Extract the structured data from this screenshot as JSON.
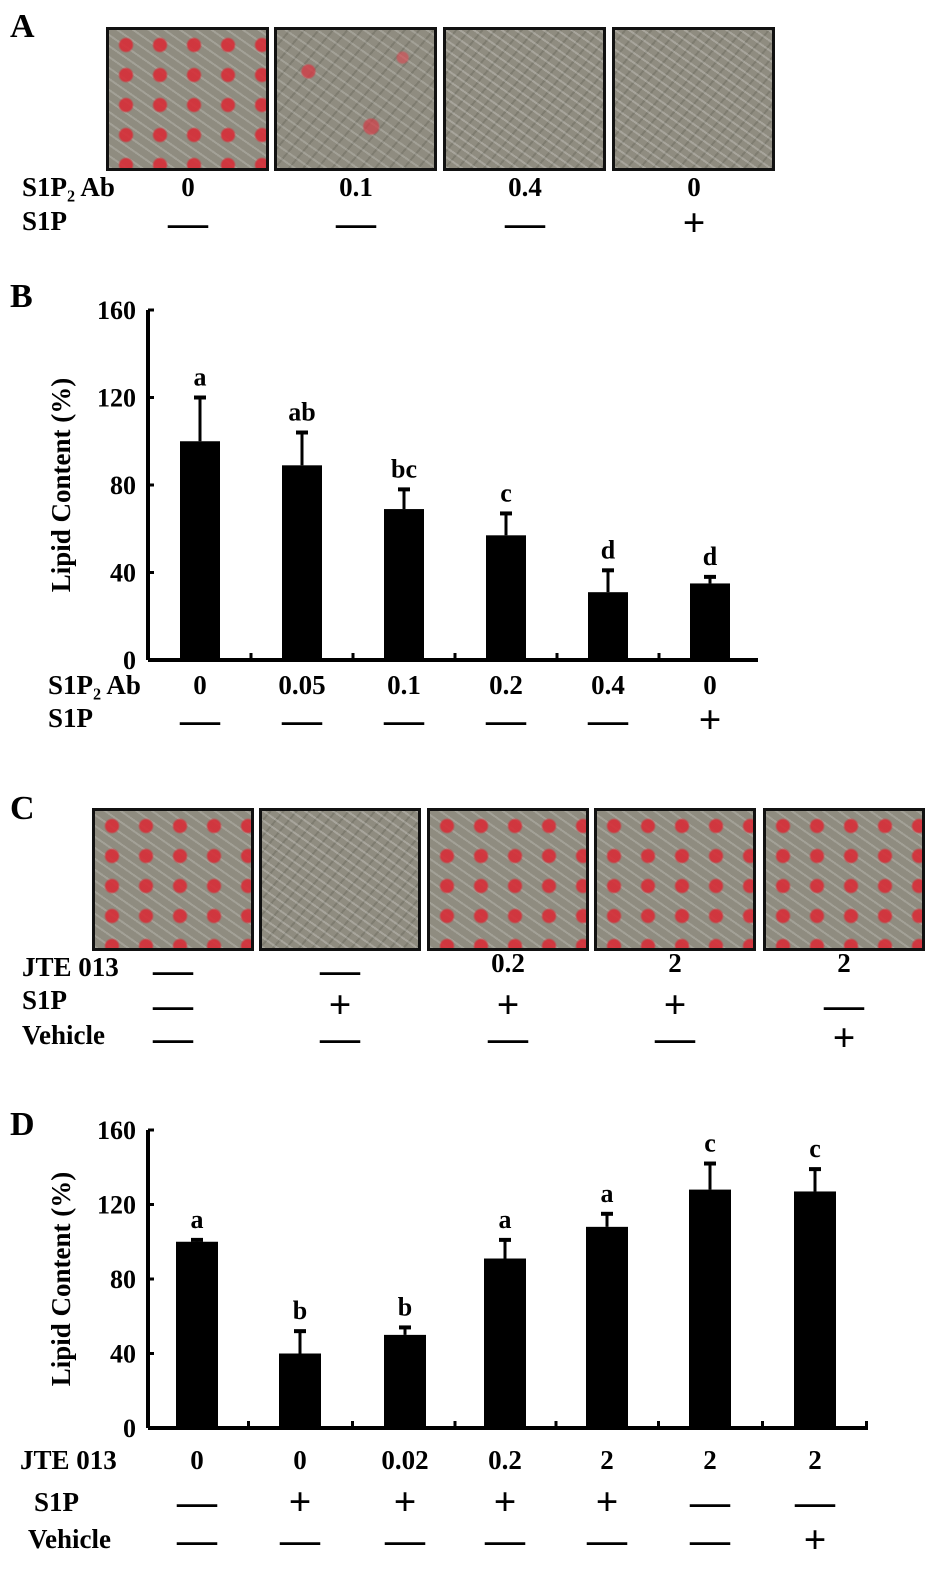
{
  "panels": {
    "A": "A",
    "B": "B",
    "C": "C",
    "D": "D"
  },
  "panel_a": {
    "row_labels": [
      "S1P₂ Ab",
      "S1P"
    ],
    "columns": [
      {
        "ab": "0",
        "s1p": "—"
      },
      {
        "ab": "0.1",
        "s1p": "—"
      },
      {
        "ab": "0.4",
        "s1p": "—"
      },
      {
        "ab": "0",
        "s1p": "+"
      }
    ],
    "image_staining": [
      "dense",
      "medium",
      "sparse",
      "sparse"
    ]
  },
  "panel_c": {
    "row_labels": [
      "JTE 013",
      "S1P",
      "Vehicle"
    ],
    "columns": [
      {
        "jte": "—",
        "s1p": "—",
        "veh": "—"
      },
      {
        "jte": "—",
        "s1p": "+",
        "veh": "—"
      },
      {
        "jte": "0.2",
        "s1p": "+",
        "veh": "—"
      },
      {
        "jte": "2",
        "s1p": "+",
        "veh": "—"
      },
      {
        "jte": "2",
        "s1p": "—",
        "veh": "+"
      }
    ],
    "image_staining": [
      "dense",
      "sparse",
      "dense",
      "dense",
      "dense"
    ]
  },
  "chart_data": [
    {
      "panel": "B",
      "type": "bar",
      "ylabel": "Lipid Content (%)",
      "ylim": [
        0,
        160
      ],
      "yticks": [
        0,
        40,
        80,
        120,
        160
      ],
      "row_labels": [
        "S1P₂ Ab",
        "S1P"
      ],
      "categories": [
        "0",
        "0.05",
        "0.1",
        "0.2",
        "0.4",
        "0"
      ],
      "s1p": [
        "—",
        "—",
        "—",
        "—",
        "—",
        "+"
      ],
      "values": [
        100,
        89,
        69,
        57,
        31,
        35
      ],
      "errors": [
        20,
        15,
        9,
        10,
        10,
        3
      ],
      "annotations": [
        "a",
        "ab",
        "bc",
        "c",
        "d",
        "d"
      ],
      "bar_color": "#000000"
    },
    {
      "panel": "D",
      "type": "bar",
      "ylabel": "Lipid Content (%)",
      "ylim": [
        0,
        160
      ],
      "yticks": [
        0,
        40,
        80,
        120,
        160
      ],
      "row_labels": [
        "JTE 013",
        "S1P",
        "Vehicle"
      ],
      "categories": [
        "0",
        "0",
        "0.02",
        "0.2",
        "2",
        "2",
        "2"
      ],
      "s1p": [
        "—",
        "+",
        "+",
        "+",
        "+",
        "—",
        "—"
      ],
      "vehicle": [
        "—",
        "—",
        "—",
        "—",
        "—",
        "—",
        "+"
      ],
      "values": [
        100,
        40,
        50,
        91,
        108,
        128,
        127
      ],
      "errors": [
        1,
        12,
        4,
        10,
        7,
        14,
        12
      ],
      "annotations": [
        "a",
        "b",
        "b",
        "a",
        "a",
        "c",
        "c"
      ],
      "bar_color": "#000000"
    }
  ]
}
